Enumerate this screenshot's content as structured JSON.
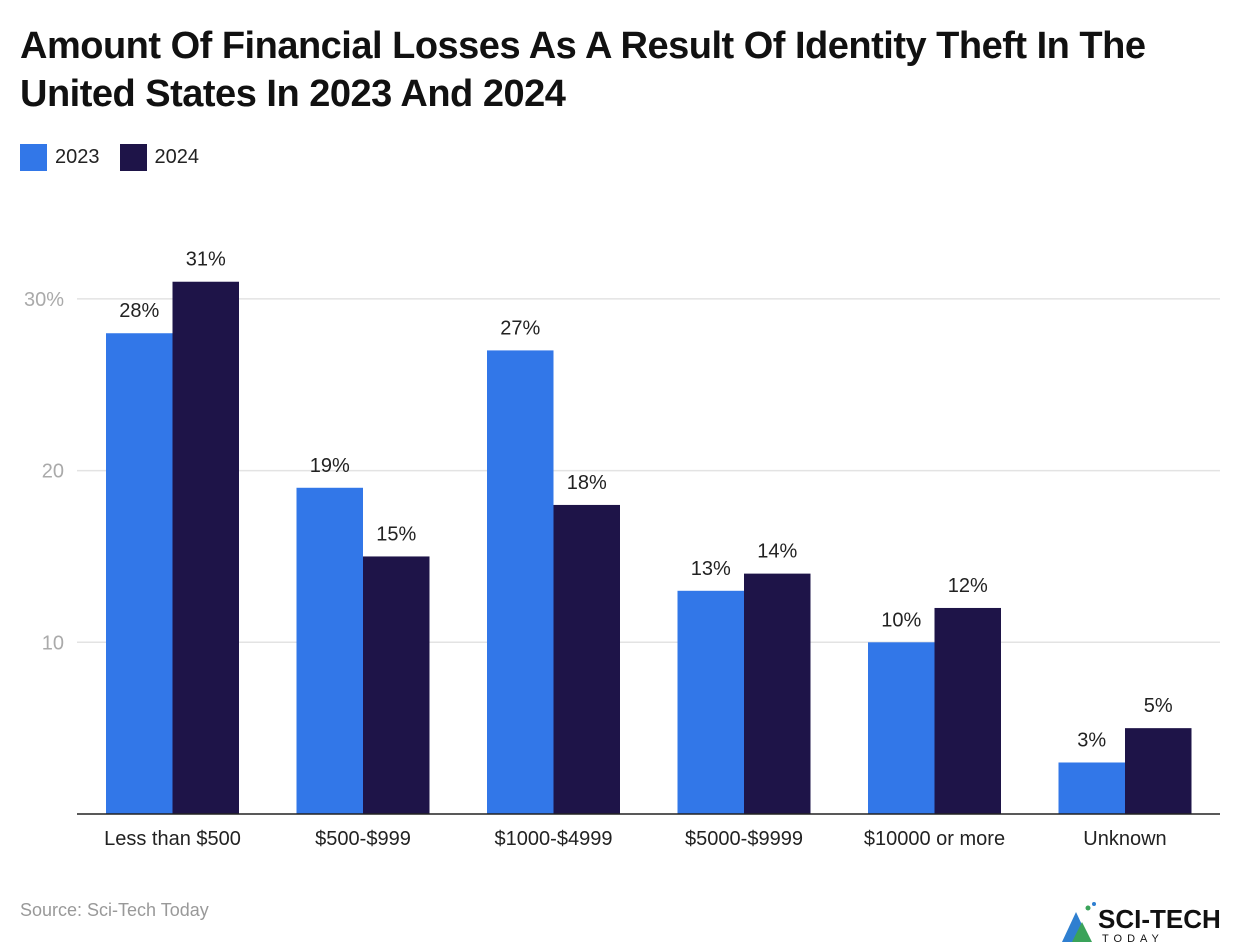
{
  "chart_data": {
    "type": "bar",
    "title": "Amount Of Financial Losses As A Result Of Identity Theft In The United States In 2023 And 2024",
    "categories": [
      "Less than $500",
      "$500-$999",
      "$1000-$4999",
      "$5000-$9999",
      "$10000 or more",
      "Unknown"
    ],
    "series": [
      {
        "name": "2023",
        "color": "#3277e8",
        "values": [
          28,
          19,
          27,
          13,
          10,
          3
        ]
      },
      {
        "name": "2024",
        "color": "#1e1448",
        "values": [
          31,
          15,
          18,
          14,
          12,
          5
        ]
      }
    ],
    "ylim": [
      0,
      32
    ],
    "yticks": [
      {
        "value": 10,
        "label": "10"
      },
      {
        "value": 20,
        "label": "20"
      },
      {
        "value": 30,
        "label": "30%"
      }
    ],
    "value_suffix": "%",
    "grid": true,
    "legend_position": "top-left",
    "xlabel": "",
    "ylabel": ""
  },
  "source": "Source: Sci-Tech Today",
  "logo": {
    "text": "SCI-TECH",
    "subtext": "TODAY"
  }
}
